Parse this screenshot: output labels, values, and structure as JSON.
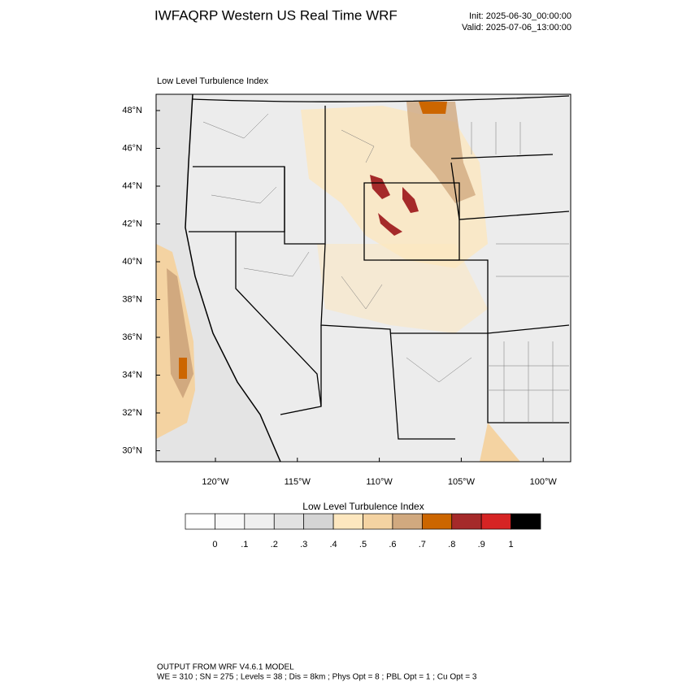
{
  "header": {
    "title": "IWFAQRP Western US Real Time WRF",
    "init": "Init: 2025-06-30_00:00:00",
    "valid": "Valid: 2025-07-06_13:00:00"
  },
  "map": {
    "subtitle": "Low Level Turbulence Index",
    "lat_labels": [
      "48°N",
      "46°N",
      "44°N",
      "42°N",
      "40°N",
      "38°N",
      "36°N",
      "34°N",
      "32°N",
      "30°N"
    ],
    "lon_labels": [
      "120°W",
      "115°W",
      "110°W",
      "105°W",
      "100°W"
    ]
  },
  "colorbar": {
    "title": "Low Level Turbulence Index",
    "colors": [
      "#ffffff",
      "#f8f8f8",
      "#efefef",
      "#e2e2e2",
      "#d5d5d5",
      "#fde7bf",
      "#f4d3a2",
      "#d1a97f",
      "#cc6600",
      "#a52a2a",
      "#d62424",
      "#000000"
    ],
    "labels": [
      "0",
      ".1",
      ".2",
      ".3",
      ".4",
      ".5",
      ".6",
      ".7",
      ".8",
      ".9",
      "1"
    ]
  },
  "footer": {
    "lines": [
      "OUTPUT FROM WRF V4.6.1 MODEL",
      "WE = 310 ; SN = 275 ; Levels = 38 ; Dis = 8km ; Phys Opt = 8 ; PBL Opt = 1 ; Cu Opt = 3"
    ]
  }
}
